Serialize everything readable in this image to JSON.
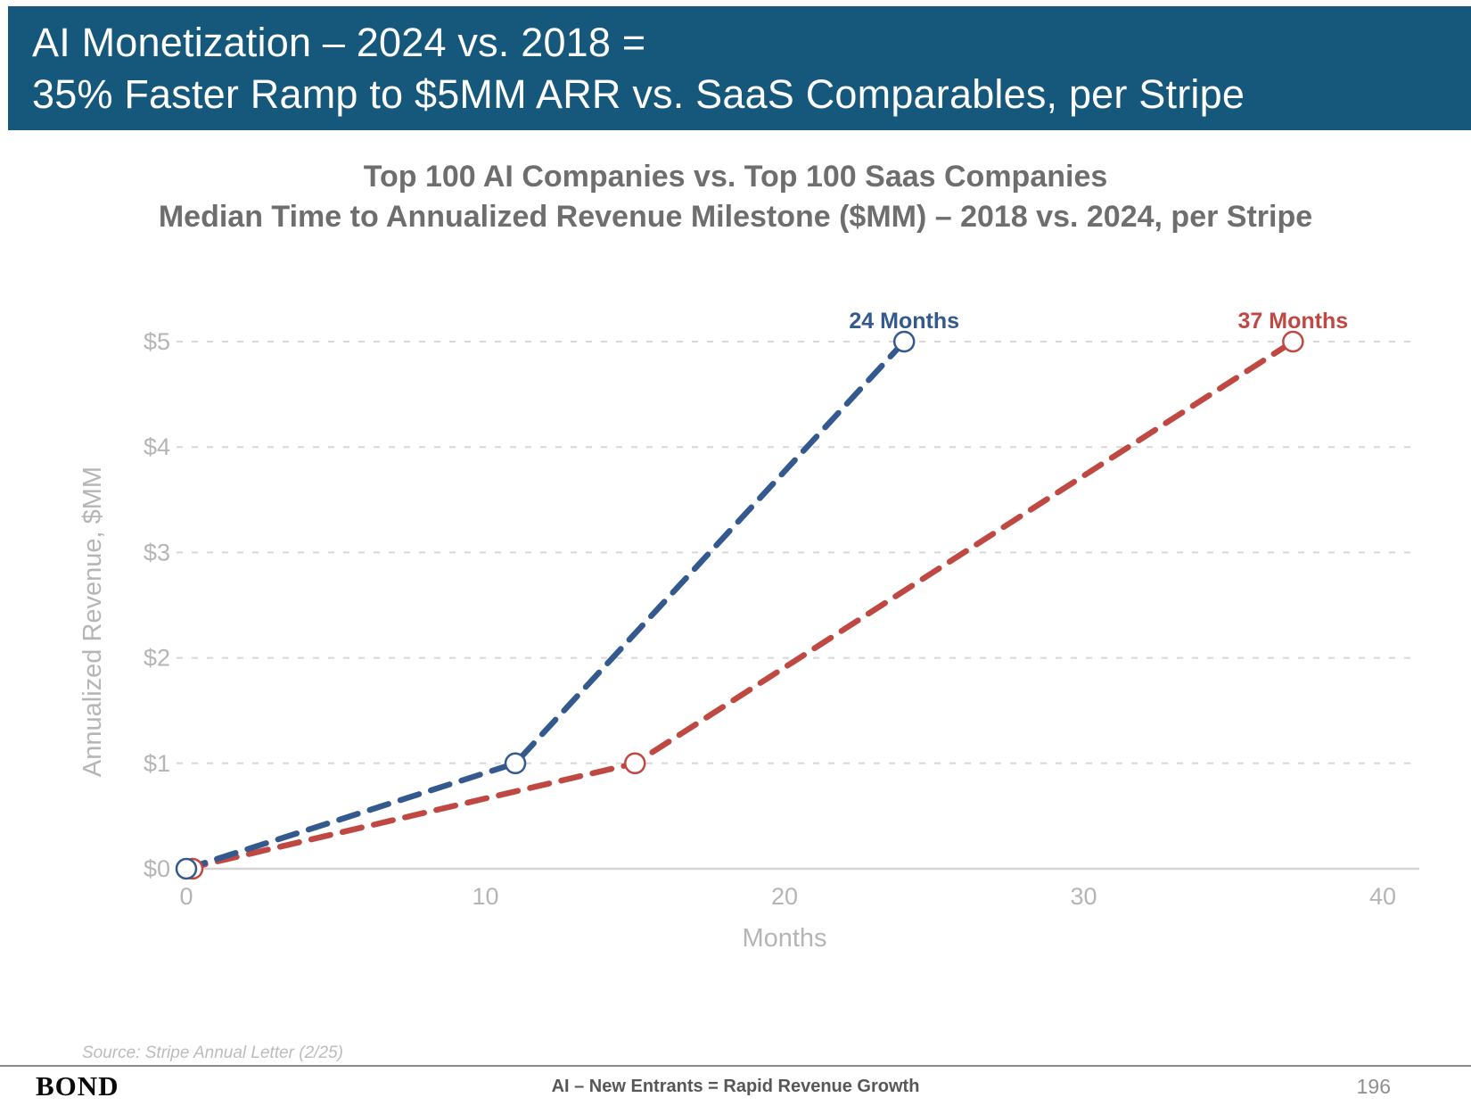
{
  "header": {
    "title_line1": "AI Monetization – 2024 vs. 2018 =",
    "title_line2": "35% Faster Ramp to $5MM ARR vs. SaaS Comparables, per Stripe"
  },
  "chart_data": {
    "type": "line",
    "title_line1": "Top 100 AI Companies vs. Top 100 Saas Companies",
    "title_line2": "Median Time to Annualized Revenue Milestone ($MM) – 2018 vs. 2024, per Stripe",
    "xlabel": "Months",
    "ylabel": "Annualized Revenue, $MM",
    "xlim": [
      0,
      40
    ],
    "ylim": [
      0,
      5
    ],
    "x_ticks": [
      0,
      10,
      20,
      30,
      40
    ],
    "x_tick_labels": [
      "0",
      "10",
      "20",
      "30",
      "40"
    ],
    "y_ticks": [
      0,
      1,
      2,
      3,
      4,
      5
    ],
    "y_tick_labels": [
      "$0",
      "$1",
      "$2",
      "$3",
      "$4",
      "$5"
    ],
    "grid": "horizontal-dashed",
    "legend": "none",
    "line_style": "dashed",
    "marker": "open-circle",
    "series": [
      {
        "name": "Top 100 AI Companies – 2024",
        "color": "#33598E",
        "points": [
          [
            0,
            0
          ],
          [
            11,
            1
          ],
          [
            24,
            5
          ]
        ],
        "annotation": {
          "label": "24 Months",
          "at_x": 24,
          "at_y": 5
        }
      },
      {
        "name": "Top 100 SaaS Companies – 2018",
        "color": "#C04843",
        "points": [
          [
            0,
            0
          ],
          [
            15,
            1
          ],
          [
            37,
            5
          ]
        ],
        "annotation": {
          "label": "37 Months",
          "at_x": 37,
          "at_y": 5
        }
      }
    ]
  },
  "source": "Source: Stripe Annual Letter (2/25)",
  "footer": {
    "logo": "BOND",
    "center": "AI – New Entrants = Rapid Revenue Growth",
    "page": "196"
  },
  "colors": {
    "header_bg": "#15587C",
    "header_text": "#FFFFFF",
    "chart_title": "#6E6E6E",
    "muted_label": "#B5B5B5",
    "gridline": "#D8D8D8",
    "axis_line": "#D4D4D4",
    "ai_blue": "#33598E",
    "saas_red": "#C04843"
  }
}
